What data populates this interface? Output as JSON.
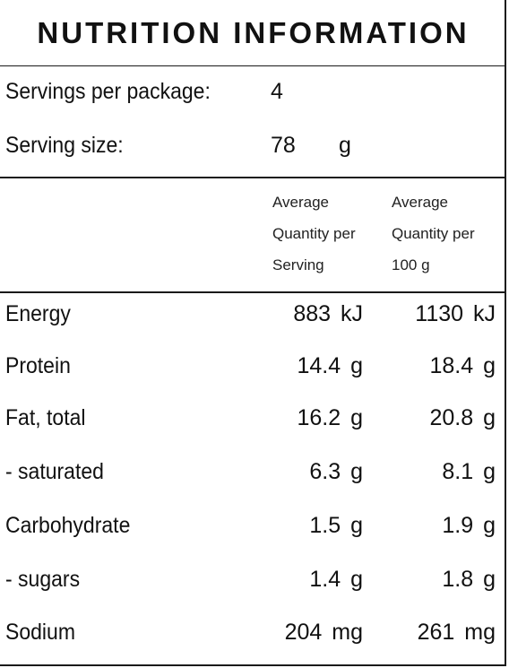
{
  "title": "NUTRITION INFORMATION",
  "servings": {
    "per_package_label": "Servings per package:",
    "per_package_value": "4",
    "size_label": "Serving size:",
    "size_value": "78",
    "size_unit": "g"
  },
  "columns": {
    "per_serving": [
      "Average",
      "Quantity per",
      "Serving"
    ],
    "per_100g": [
      "Average",
      "Quantity per",
      "100 g"
    ]
  },
  "rows": [
    {
      "label": "Energy",
      "per_serving": "883 kJ",
      "per_100g": "1130 kJ"
    },
    {
      "label": "Protein",
      "per_serving": "14.4 g",
      "per_100g": "18.4 g"
    },
    {
      "label": "Fat, total",
      "per_serving": "16.2 g",
      "per_100g": "20.8 g"
    },
    {
      "label": "- saturated",
      "per_serving": "6.3 g",
      "per_100g": "8.1 g"
    },
    {
      "label": "Carbohydrate",
      "per_serving": "1.5 g",
      "per_100g": "1.9 g"
    },
    {
      "label": "- sugars",
      "per_serving": "1.4 g",
      "per_100g": "1.8 g"
    },
    {
      "label": "Sodium",
      "per_serving": "204 mg",
      "per_100g": "261 mg"
    }
  ]
}
